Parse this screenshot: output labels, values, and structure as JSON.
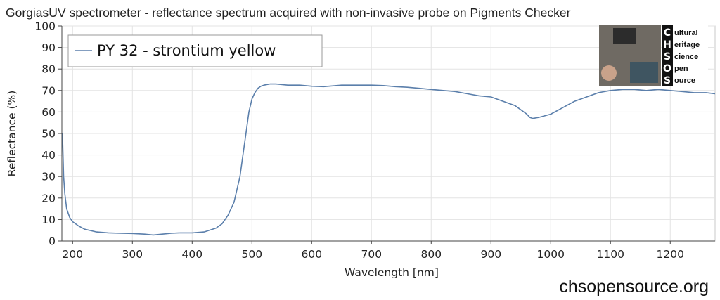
{
  "chart_data": {
    "type": "line",
    "title": "GorgiasUV spectrometer - reflectance spectrum acquired with non-invasive probe on Pigments Checker",
    "xlabel": "Wavelength [nm]",
    "ylabel": "Reflectance (%)",
    "xlim": [
      182,
      1275
    ],
    "ylim": [
      0,
      100
    ],
    "xticks": [
      "200",
      "300",
      "400",
      "500",
      "600",
      "700",
      "800",
      "900",
      "1000",
      "1100",
      "1200"
    ],
    "yticks": [
      "0",
      "10",
      "20",
      "30",
      "40",
      "50",
      "60",
      "70",
      "80",
      "90",
      "100"
    ],
    "grid": true,
    "legend_position": "top-left",
    "line_color": "#5b7fab",
    "series": [
      {
        "name": "PY 32 - strontium yellow",
        "x": [
          183,
          185,
          187,
          190,
          195,
          200,
          210,
          220,
          240,
          260,
          280,
          300,
          320,
          335,
          350,
          365,
          380,
          400,
          420,
          440,
          450,
          460,
          470,
          480,
          485,
          490,
          495,
          500,
          505,
          510,
          515,
          520,
          530,
          540,
          560,
          580,
          600,
          620,
          650,
          680,
          700,
          720,
          740,
          760,
          780,
          800,
          820,
          840,
          860,
          880,
          900,
          920,
          940,
          950,
          960,
          965,
          970,
          980,
          1000,
          1020,
          1040,
          1060,
          1080,
          1100,
          1120,
          1140,
          1160,
          1180,
          1200,
          1220,
          1240,
          1260,
          1275
        ],
        "y": [
          50,
          30,
          22,
          15,
          11,
          9,
          7,
          5.5,
          4.2,
          3.8,
          3.6,
          3.5,
          3.2,
          2.8,
          3.2,
          3.6,
          3.8,
          3.8,
          4.2,
          6,
          8,
          12,
          18,
          30,
          40,
          50,
          60,
          66,
          69,
          71,
          72,
          72.5,
          73,
          73,
          72.5,
          72.5,
          72,
          71.8,
          72.5,
          72.5,
          72.5,
          72.3,
          71.8,
          71.5,
          71,
          70.5,
          70,
          69.5,
          68.5,
          67.5,
          67,
          65,
          63,
          61,
          59,
          57.5,
          57,
          57.5,
          59,
          62,
          65,
          67,
          69,
          70,
          70.5,
          70.5,
          70,
          70.5,
          70,
          69.5,
          69,
          69,
          68.5
        ]
      }
    ]
  },
  "footer_url": "chsopensource.org",
  "logo": {
    "letters": [
      "C",
      "H",
      "S",
      "O",
      "S"
    ],
    "words": [
      "ultural",
      "eritage",
      "cience",
      "pen",
      "ource"
    ]
  }
}
